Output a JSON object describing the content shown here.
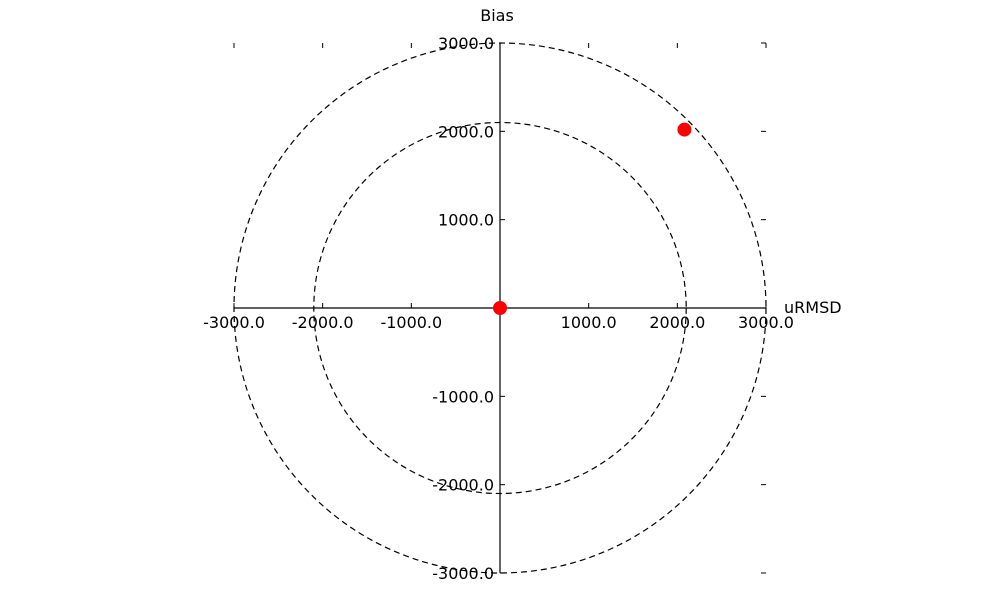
{
  "chart_data": {
    "type": "scatter",
    "xlabel": "uRMSD",
    "ylabel": "Bias",
    "xlim": [
      -3000,
      3000
    ],
    "ylim": [
      -3000,
      3000
    ],
    "x_ticks": [
      "-3000.0",
      "-2000.0",
      "-1000.0",
      "1000.0",
      "2000.0",
      "3000.0"
    ],
    "y_ticks": [
      "3000.0",
      "2000.0",
      "1000.0",
      "-1000.0",
      "-2000.0",
      "-3000.0"
    ],
    "circle_radii": [
      2100,
      3000
    ],
    "grid": false,
    "points": [
      {
        "x": 0,
        "y": 0
      },
      {
        "x": 2080,
        "y": 2020
      }
    ],
    "colors": {
      "point": "#ff0000",
      "axis": "#000000",
      "circle": "#000000"
    }
  }
}
